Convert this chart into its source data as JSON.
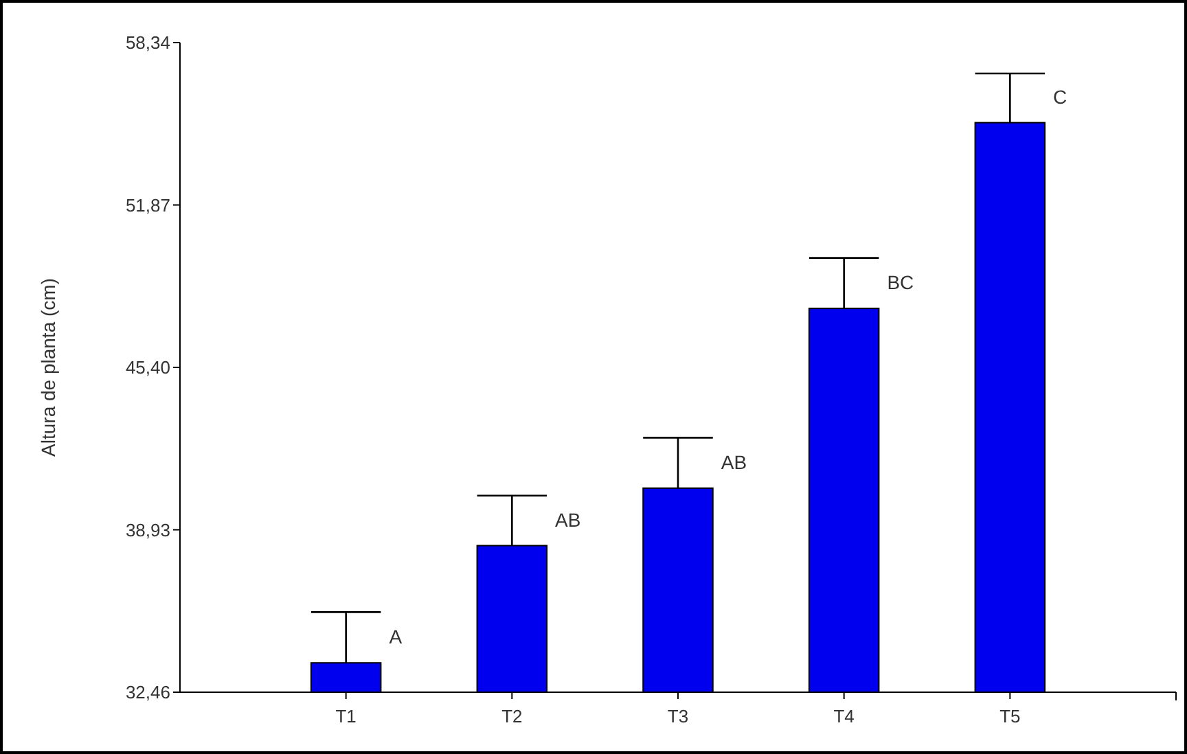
{
  "chart_data": {
    "type": "bar",
    "ylabel": "Altura de planta (cm)",
    "categories": [
      "T1",
      "T2",
      "T3",
      "T4",
      "T5"
    ],
    "values": [
      33.63,
      38.3,
      40.59,
      47.75,
      55.15
    ],
    "errors": [
      [
        33.63,
        35.65
      ],
      [
        38.3,
        40.29
      ],
      [
        40.59,
        42.6
      ],
      [
        47.75,
        49.76
      ],
      [
        55.15,
        57.11
      ]
    ],
    "color": "#0000ee",
    "ylim": [
      32.46,
      58.34
    ],
    "yticks": [
      {
        "value": 32.46,
        "label": "32,46"
      },
      {
        "value": 38.93,
        "label": "38,93"
      },
      {
        "value": 45.4,
        "label": "45,40"
      },
      {
        "value": 51.87,
        "label": "51,87"
      },
      {
        "value": 58.34,
        "label": "58,34"
      }
    ],
    "annotations": [
      {
        "text": "A",
        "x": "T1",
        "y": 33.63
      },
      {
        "text": "AB",
        "x": "T2",
        "y": 38.3
      },
      {
        "text": "AB",
        "x": "T3",
        "y": 40.59
      },
      {
        "text": "BC",
        "x": "T4",
        "y": 47.75
      },
      {
        "text": "C",
        "x": "T5",
        "y": 55.15
      }
    ],
    "grid": false
  }
}
